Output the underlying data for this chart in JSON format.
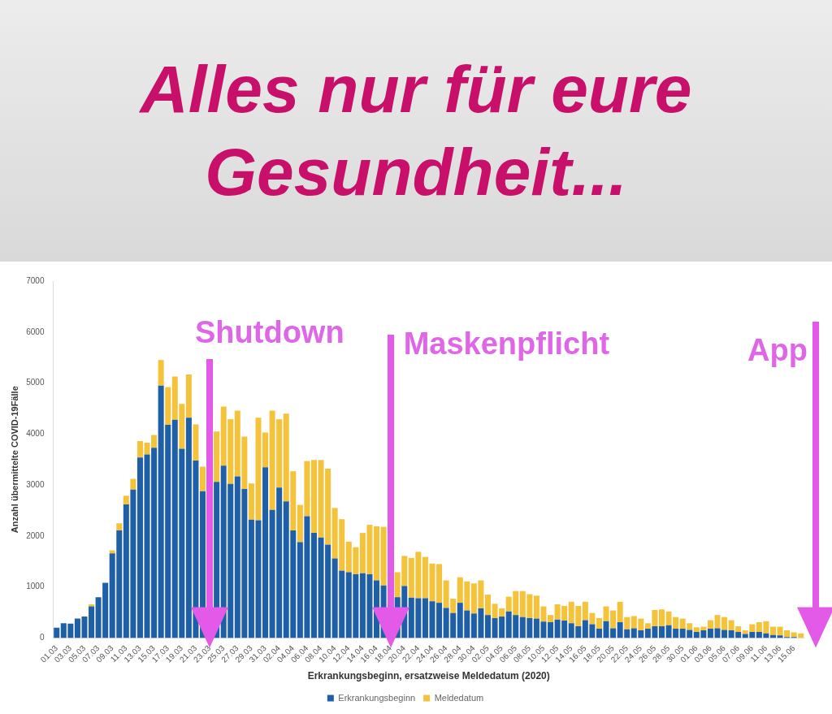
{
  "chart_data": {
    "type": "bar",
    "title": "Alles nur für eure Gesundheit...",
    "xlabel": "Erkrankungsbeginn, ersatzweise Meldedatum (2020)",
    "ylabel": "Anzahl übermittelte COVID-19Fälle",
    "categories": [
      "01.03",
      null,
      "03.03",
      null,
      "05.03",
      null,
      "07.03",
      null,
      "09.03",
      null,
      "11.03",
      null,
      "13.03",
      null,
      "15.03",
      null,
      "17.03",
      null,
      "19.03",
      null,
      "21.03",
      null,
      "23.03",
      null,
      "25.03",
      null,
      "27.03",
      null,
      "29.03",
      null,
      "31.03",
      null,
      "02.04",
      null,
      "04.04",
      null,
      "06.04",
      null,
      "08.04",
      null,
      "10.04",
      null,
      "12.04",
      null,
      "14.04",
      null,
      "16.04",
      null,
      "18.04",
      null,
      "20.04",
      null,
      "22.04",
      null,
      "24.04",
      null,
      "26.04",
      null,
      "28.04",
      null,
      "30.04",
      null,
      "02.05",
      null,
      "04.05",
      null,
      "06.05",
      null,
      "08.05",
      null,
      "10.05",
      null,
      "12.05",
      null,
      "14.05",
      null,
      "16.05",
      null,
      "18.05",
      null,
      "20.05",
      null,
      "22.05",
      null,
      "24.05",
      null,
      "26.05",
      null,
      "28.05",
      null,
      "30.05",
      null,
      "01.06",
      null,
      "03.06",
      null,
      "05.06",
      null,
      "07.06",
      null,
      "09.06",
      null,
      "11.06",
      null,
      "13.06",
      null,
      "15.06",
      null
    ],
    "stacked": true,
    "series": [
      {
        "name": "Erkrankungsbeginn",
        "color": "#1f5fa8",
        "values": [
          200,
          290,
          280,
          380,
          420,
          620,
          800,
          1080,
          1660,
          2110,
          2620,
          2910,
          3540,
          3600,
          3730,
          4950,
          4180,
          4280,
          3710,
          4320,
          3480,
          2880,
          null,
          3060,
          3380,
          3020,
          3170,
          2920,
          2320,
          2310,
          3350,
          2510,
          2950,
          2680,
          2110,
          1880,
          2390,
          2060,
          1970,
          1830,
          1560,
          1320,
          1290,
          1250,
          1270,
          1250,
          1130,
          1030,
          null,
          800,
          1020,
          790,
          780,
          780,
          720,
          690,
          590,
          490,
          690,
          540,
          480,
          580,
          450,
          390,
          420,
          520,
          450,
          410,
          390,
          380,
          320,
          310,
          360,
          340,
          290,
          230,
          350,
          270,
          180,
          330,
          190,
          310,
          170,
          190,
          150,
          180,
          230,
          230,
          250,
          180,
          180,
          160,
          120,
          150,
          180,
          190,
          160,
          150,
          120,
          80,
          120,
          120,
          90,
          60,
          50,
          20,
          20,
          null
        ]
      },
      {
        "name": "Meldedatum",
        "color": "#f5c33b",
        "values": [
          0,
          0,
          0,
          0,
          0,
          40,
          0,
          0,
          60,
          140,
          170,
          210,
          320,
          230,
          250,
          500,
          740,
          850,
          880,
          850,
          710,
          480,
          null,
          990,
          1160,
          1270,
          1290,
          1030,
          710,
          2010,
          680,
          1950,
          1340,
          1720,
          1160,
          730,
          1080,
          1430,
          1520,
          1490,
          990,
          1010,
          600,
          530,
          790,
          970,
          1060,
          1150,
          null,
          490,
          590,
          780,
          910,
          810,
          740,
          760,
          540,
          280,
          500,
          570,
          590,
          550,
          400,
          280,
          160,
          290,
          470,
          510,
          470,
          450,
          300,
          140,
          300,
          290,
          420,
          400,
          360,
          220,
          210,
          290,
          350,
          400,
          240,
          240,
          230,
          110,
          320,
          330,
          270,
          230,
          200,
          130,
          90,
          70,
          170,
          260,
          250,
          200,
          110,
          70,
          150,
          190,
          240,
          160,
          170,
          130,
          90,
          90
        ]
      }
    ],
    "ylim": [
      0,
      7000
    ],
    "yticks": [
      0,
      1000,
      2000,
      3000,
      4000,
      5000,
      6000,
      7000
    ],
    "legend": "bottom",
    "annotations": [
      "Shutdown",
      "Maskenpflicht",
      "App"
    ]
  }
}
